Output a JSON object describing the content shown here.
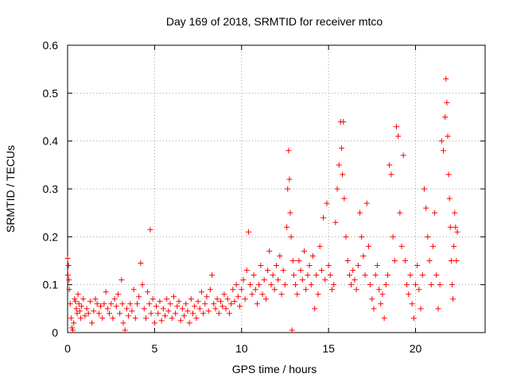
{
  "chart_data": {
    "type": "scatter",
    "title": "Day 169 of 2018, SRMTID for receiver mtco",
    "xlabel": "GPS time / hours",
    "ylabel": "SRMTID / TECUs",
    "xlim": [
      0,
      24
    ],
    "ylim": [
      0,
      0.6
    ],
    "xticks": [
      0,
      5,
      10,
      15,
      20
    ],
    "yticks": [
      0,
      0.1,
      0.2,
      0.3,
      0.4,
      0.5,
      0.6
    ],
    "grid": true,
    "marker": "+",
    "color": "#ff0000",
    "series": [
      {
        "name": "SRMTID",
        "points": [
          [
            0.0,
            0.155
          ],
          [
            0.02,
            0.12
          ],
          [
            0.05,
            0.14
          ],
          [
            0.08,
            0.11
          ],
          [
            0.1,
            0.09
          ],
          [
            0.15,
            0.06
          ],
          [
            0.2,
            0.03
          ],
          [
            0.25,
            0.01
          ],
          [
            0.3,
            0.005
          ],
          [
            0.35,
            0.02
          ],
          [
            0.4,
            0.07
          ],
          [
            0.45,
            0.065
          ],
          [
            0.5,
            0.05
          ],
          [
            0.55,
            0.04
          ],
          [
            0.6,
            0.08
          ],
          [
            0.65,
            0.06
          ],
          [
            0.7,
            0.045
          ],
          [
            0.75,
            0.03
          ],
          [
            0.8,
            0.055
          ],
          [
            0.9,
            0.07
          ],
          [
            1.0,
            0.035
          ],
          [
            1.1,
            0.05
          ],
          [
            1.2,
            0.04
          ],
          [
            1.3,
            0.065
          ],
          [
            1.4,
            0.02
          ],
          [
            1.5,
            0.045
          ],
          [
            1.6,
            0.07
          ],
          [
            1.7,
            0.06
          ],
          [
            1.8,
            0.04
          ],
          [
            1.9,
            0.055
          ],
          [
            2.0,
            0.03
          ],
          [
            2.1,
            0.06
          ],
          [
            2.2,
            0.085
          ],
          [
            2.3,
            0.05
          ],
          [
            2.4,
            0.04
          ],
          [
            2.5,
            0.06
          ],
          [
            2.6,
            0.03
          ],
          [
            2.7,
            0.07
          ],
          [
            2.8,
            0.055
          ],
          [
            2.9,
            0.08
          ],
          [
            3.0,
            0.04
          ],
          [
            3.1,
            0.11
          ],
          [
            3.15,
            0.06
          ],
          [
            3.2,
            0.02
          ],
          [
            3.3,
            0.005
          ],
          [
            3.4,
            0.05
          ],
          [
            3.5,
            0.035
          ],
          [
            3.6,
            0.06
          ],
          [
            3.7,
            0.045
          ],
          [
            3.8,
            0.09
          ],
          [
            3.9,
            0.03
          ],
          [
            4.0,
            0.06
          ],
          [
            4.1,
            0.075
          ],
          [
            4.2,
            0.145
          ],
          [
            4.3,
            0.1
          ],
          [
            4.4,
            0.05
          ],
          [
            4.5,
            0.03
          ],
          [
            4.6,
            0.085
          ],
          [
            4.7,
            0.06
          ],
          [
            4.75,
            0.215
          ],
          [
            4.8,
            0.04
          ],
          [
            4.9,
            0.07
          ],
          [
            5.0,
            0.02
          ],
          [
            5.1,
            0.055
          ],
          [
            5.2,
            0.04
          ],
          [
            5.3,
            0.065
          ],
          [
            5.4,
            0.025
          ],
          [
            5.5,
            0.05
          ],
          [
            5.6,
            0.035
          ],
          [
            5.7,
            0.07
          ],
          [
            5.8,
            0.045
          ],
          [
            5.9,
            0.06
          ],
          [
            6.0,
            0.03
          ],
          [
            6.1,
            0.075
          ],
          [
            6.2,
            0.04
          ],
          [
            6.3,
            0.055
          ],
          [
            6.4,
            0.065
          ],
          [
            6.5,
            0.025
          ],
          [
            6.6,
            0.05
          ],
          [
            6.7,
            0.035
          ],
          [
            6.8,
            0.06
          ],
          [
            6.9,
            0.045
          ],
          [
            7.0,
            0.02
          ],
          [
            7.1,
            0.07
          ],
          [
            7.2,
            0.04
          ],
          [
            7.3,
            0.055
          ],
          [
            7.4,
            0.03
          ],
          [
            7.5,
            0.065
          ],
          [
            7.6,
            0.05
          ],
          [
            7.7,
            0.085
          ],
          [
            7.8,
            0.04
          ],
          [
            7.9,
            0.06
          ],
          [
            8.0,
            0.075
          ],
          [
            8.1,
            0.045
          ],
          [
            8.2,
            0.09
          ],
          [
            8.3,
            0.12
          ],
          [
            8.4,
            0.06
          ],
          [
            8.5,
            0.05
          ],
          [
            8.6,
            0.07
          ],
          [
            8.7,
            0.04
          ],
          [
            8.8,
            0.065
          ],
          [
            8.9,
            0.055
          ],
          [
            9.0,
            0.08
          ],
          [
            9.1,
            0.05
          ],
          [
            9.2,
            0.07
          ],
          [
            9.3,
            0.04
          ],
          [
            9.4,
            0.06
          ],
          [
            9.5,
            0.09
          ],
          [
            9.6,
            0.065
          ],
          [
            9.7,
            0.1
          ],
          [
            9.8,
            0.075
          ],
          [
            9.9,
            0.055
          ],
          [
            10.0,
            0.09
          ],
          [
            10.1,
            0.11
          ],
          [
            10.2,
            0.07
          ],
          [
            10.3,
            0.13
          ],
          [
            10.4,
            0.21
          ],
          [
            10.5,
            0.1
          ],
          [
            10.6,
            0.08
          ],
          [
            10.7,
            0.12
          ],
          [
            10.8,
            0.09
          ],
          [
            10.9,
            0.06
          ],
          [
            11.0,
            0.1
          ],
          [
            11.1,
            0.14
          ],
          [
            11.2,
            0.08
          ],
          [
            11.3,
            0.11
          ],
          [
            11.4,
            0.07
          ],
          [
            11.5,
            0.13
          ],
          [
            11.6,
            0.17
          ],
          [
            11.7,
            0.1
          ],
          [
            11.8,
            0.12
          ],
          [
            11.9,
            0.09
          ],
          [
            12.0,
            0.14
          ],
          [
            12.1,
            0.11
          ],
          [
            12.2,
            0.16
          ],
          [
            12.3,
            0.08
          ],
          [
            12.4,
            0.13
          ],
          [
            12.5,
            0.1
          ],
          [
            12.6,
            0.22
          ],
          [
            12.65,
            0.3
          ],
          [
            12.7,
            0.38
          ],
          [
            12.75,
            0.32
          ],
          [
            12.8,
            0.25
          ],
          [
            12.85,
            0.2
          ],
          [
            12.9,
            0.005
          ],
          [
            12.95,
            0.15
          ],
          [
            13.0,
            0.12
          ],
          [
            13.1,
            0.1
          ],
          [
            13.2,
            0.08
          ],
          [
            13.3,
            0.15
          ],
          [
            13.4,
            0.13
          ],
          [
            13.5,
            0.11
          ],
          [
            13.6,
            0.17
          ],
          [
            13.7,
            0.09
          ],
          [
            13.8,
            0.12
          ],
          [
            13.9,
            0.14
          ],
          [
            14.0,
            0.1
          ],
          [
            14.1,
            0.16
          ],
          [
            14.2,
            0.05
          ],
          [
            14.3,
            0.12
          ],
          [
            14.4,
            0.08
          ],
          [
            14.5,
            0.18
          ],
          [
            14.6,
            0.13
          ],
          [
            14.7,
            0.24
          ],
          [
            14.8,
            0.11
          ],
          [
            14.9,
            0.27
          ],
          [
            15.0,
            0.14
          ],
          [
            15.1,
            0.12
          ],
          [
            15.2,
            0.09
          ],
          [
            15.3,
            0.1
          ],
          [
            15.4,
            0.23
          ],
          [
            15.5,
            0.3
          ],
          [
            15.6,
            0.35
          ],
          [
            15.7,
            0.44
          ],
          [
            15.75,
            0.385
          ],
          [
            15.8,
            0.33
          ],
          [
            15.85,
            0.44
          ],
          [
            15.9,
            0.28
          ],
          [
            16.0,
            0.2
          ],
          [
            16.1,
            0.15
          ],
          [
            16.2,
            0.12
          ],
          [
            16.3,
            0.1
          ],
          [
            16.4,
            0.13
          ],
          [
            16.5,
            0.11
          ],
          [
            16.6,
            0.09
          ],
          [
            16.7,
            0.14
          ],
          [
            16.8,
            0.25
          ],
          [
            16.9,
            0.2
          ],
          [
            17.0,
            0.16
          ],
          [
            17.1,
            0.12
          ],
          [
            17.2,
            0.27
          ],
          [
            17.3,
            0.18
          ],
          [
            17.4,
            0.1
          ],
          [
            17.5,
            0.07
          ],
          [
            17.6,
            0.05
          ],
          [
            17.7,
            0.12
          ],
          [
            17.8,
            0.14
          ],
          [
            17.9,
            0.09
          ],
          [
            18.0,
            0.06
          ],
          [
            18.1,
            0.08
          ],
          [
            18.2,
            0.03
          ],
          [
            18.3,
            0.1
          ],
          [
            18.4,
            0.12
          ],
          [
            18.5,
            0.35
          ],
          [
            18.6,
            0.33
          ],
          [
            18.7,
            0.2
          ],
          [
            18.8,
            0.15
          ],
          [
            18.9,
            0.43
          ],
          [
            19.0,
            0.41
          ],
          [
            19.1,
            0.25
          ],
          [
            19.2,
            0.18
          ],
          [
            19.3,
            0.37
          ],
          [
            19.4,
            0.15
          ],
          [
            19.5,
            0.1
          ],
          [
            19.6,
            0.08
          ],
          [
            19.7,
            0.12
          ],
          [
            19.8,
            0.06
          ],
          [
            19.9,
            0.03
          ],
          [
            20.0,
            0.1
          ],
          [
            20.1,
            0.14
          ],
          [
            20.2,
            0.09
          ],
          [
            20.3,
            0.05
          ],
          [
            20.4,
            0.12
          ],
          [
            20.5,
            0.3
          ],
          [
            20.6,
            0.26
          ],
          [
            20.7,
            0.2
          ],
          [
            20.8,
            0.15
          ],
          [
            20.9,
            0.1
          ],
          [
            21.0,
            0.18
          ],
          [
            21.1,
            0.25
          ],
          [
            21.2,
            0.12
          ],
          [
            21.3,
            0.05
          ],
          [
            21.4,
            0.1
          ],
          [
            21.5,
            0.4
          ],
          [
            21.6,
            0.38
          ],
          [
            21.7,
            0.45
          ],
          [
            21.75,
            0.53
          ],
          [
            21.8,
            0.48
          ],
          [
            21.85,
            0.41
          ],
          [
            21.9,
            0.33
          ],
          [
            21.95,
            0.28
          ],
          [
            22.0,
            0.22
          ],
          [
            22.05,
            0.15
          ],
          [
            22.1,
            0.1
          ],
          [
            22.15,
            0.07
          ],
          [
            22.2,
            0.18
          ],
          [
            22.25,
            0.25
          ],
          [
            22.3,
            0.22
          ],
          [
            22.35,
            0.15
          ],
          [
            22.4,
            0.21
          ]
        ]
      }
    ]
  }
}
